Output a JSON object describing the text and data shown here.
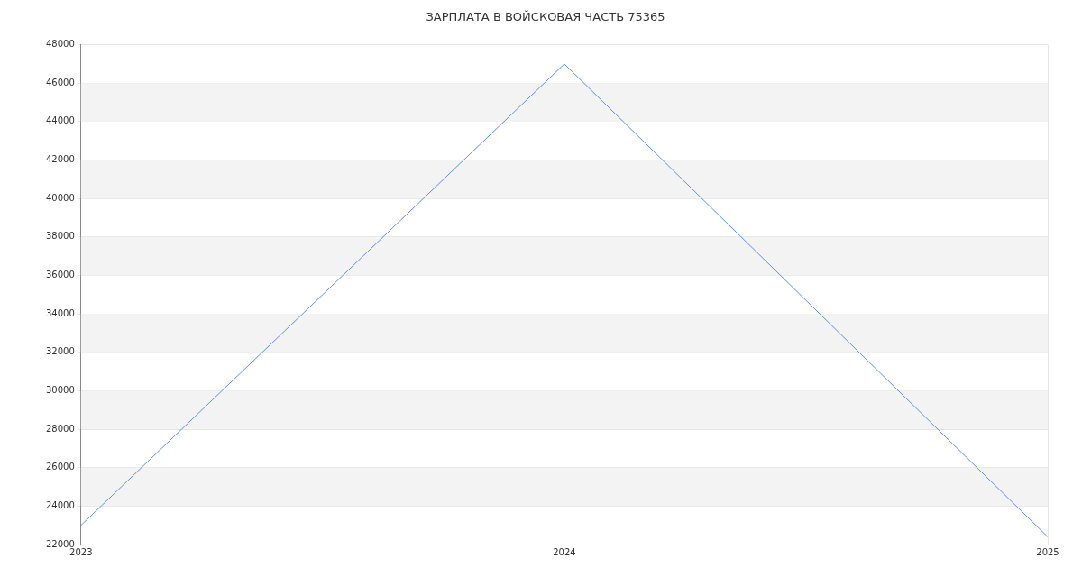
{
  "chart_data": {
    "type": "line",
    "title": "ЗАРПЛАТА В ВОЙСКОВАЯ ЧАСТЬ 75365",
    "x": [
      2023,
      2024,
      2025
    ],
    "series": [
      {
        "color": "#5b8ff0",
        "values": [
          23000,
          47000,
          22400
        ]
      }
    ],
    "xlim": [
      2023,
      2025
    ],
    "xticks": [
      2023,
      2024,
      2025
    ],
    "ylim": [
      22000,
      48000
    ],
    "yticks": [
      22000,
      24000,
      26000,
      28000,
      30000,
      32000,
      34000,
      36000,
      38000,
      40000,
      42000,
      44000,
      46000,
      48000
    ],
    "grid": true,
    "legend": false,
    "marker": "none",
    "line_style": "solid"
  }
}
